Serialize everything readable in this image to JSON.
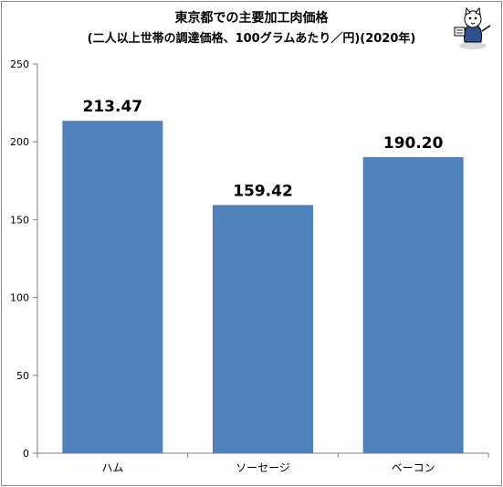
{
  "chart_data": {
    "type": "bar",
    "title": "東京都での主要加工肉価格",
    "subtitle": "(二人以上世帯の調達価格、100グラムあたり／円)(2020年)",
    "categories": [
      "ハム",
      "ソーセージ",
      "ベーコン"
    ],
    "values": [
      213.47,
      159.42,
      190.2
    ],
    "data_labels": [
      "213.47",
      "159.42",
      "190.20"
    ],
    "y_ticks": [
      "0",
      "50",
      "100",
      "150",
      "200",
      "250"
    ],
    "ylim": [
      0,
      250
    ],
    "xlabel": "",
    "ylabel": "",
    "grid": false,
    "legend": "none",
    "bar_color": "#4f81bd",
    "axis_color": "#808080"
  },
  "decor": {
    "mascot_icon": "mascot-cat-icon"
  }
}
